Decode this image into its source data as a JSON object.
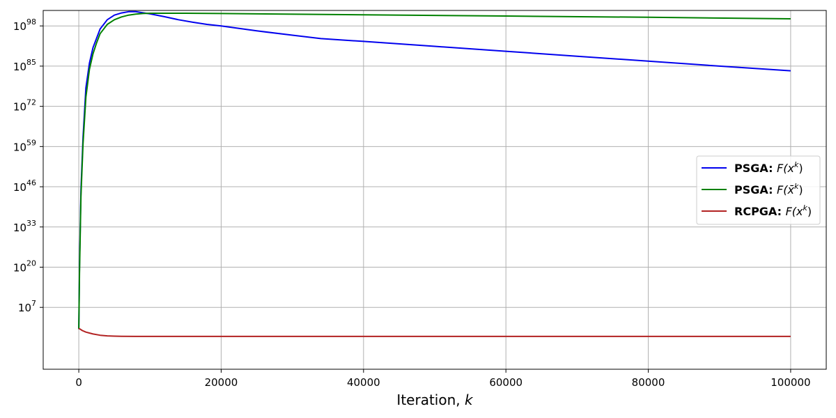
{
  "chart_data": {
    "type": "line",
    "title": "",
    "xlabel": "Iteration, ",
    "xlabel_var": "k",
    "ylabel": "",
    "xlim": [
      -5000,
      105000
    ],
    "ylim_log10": [
      -13,
      103
    ],
    "y_scale": "log",
    "grid": true,
    "legend_position": "center-right",
    "x_ticks": [
      {
        "value": 0,
        "label": "0"
      },
      {
        "value": 20000,
        "label": "20000"
      },
      {
        "value": 40000,
        "label": "40000"
      },
      {
        "value": 60000,
        "label": "60000"
      },
      {
        "value": 80000,
        "label": "80000"
      },
      {
        "value": 100000,
        "label": "100000"
      }
    ],
    "y_ticks": [
      {
        "exp": 7,
        "base": "10",
        "label": "7"
      },
      {
        "exp": 20,
        "base": "10",
        "label": "20"
      },
      {
        "exp": 33,
        "base": "10",
        "label": "33"
      },
      {
        "exp": 46,
        "base": "10",
        "label": "46"
      },
      {
        "exp": 59,
        "base": "10",
        "label": "59"
      },
      {
        "exp": 72,
        "base": "10",
        "label": "72"
      },
      {
        "exp": 85,
        "base": "10",
        "label": "85"
      },
      {
        "exp": 98,
        "base": "10",
        "label": "98"
      }
    ],
    "series": [
      {
        "name_bold": "PSGA:",
        "name_math": "F(x",
        "name_sup": "k",
        "name_tail": ")",
        "color": "#0000ee",
        "x": [
          0,
          100,
          300,
          600,
          1000,
          1500,
          2000,
          3000,
          4000,
          5000,
          6000,
          7000,
          8000,
          10000,
          12000,
          14000,
          16000,
          18000,
          20000,
          25000,
          30000,
          34000,
          40000,
          50000,
          60000,
          70000,
          80000,
          90000,
          100000
        ],
        "log10_y": [
          0,
          20,
          45,
          62,
          78,
          86,
          91,
          97,
          100,
          101.5,
          102.2,
          102.6,
          102.6,
          101.9,
          101,
          100,
          99.2,
          98.5,
          98,
          96.4,
          95,
          93.9,
          93,
          91.4,
          89.8,
          88.2,
          86.6,
          85,
          83.5
        ]
      },
      {
        "name_bold": "PSGA:",
        "name_math": "F(x̄",
        "name_sup": "k",
        "name_tail": ")",
        "color": "#008000",
        "x": [
          0,
          100,
          300,
          600,
          1000,
          1500,
          2000,
          2500,
          3000,
          4000,
          5000,
          6000,
          7000,
          8000,
          9000,
          10000,
          15000,
          20000,
          40000,
          60000,
          80000,
          100000
        ],
        "log10_y": [
          0,
          18,
          43,
          60,
          75,
          84,
          89,
          92.5,
          95.5,
          98.5,
          100,
          100.9,
          101.5,
          101.8,
          102,
          102.1,
          102.1,
          102,
          101.6,
          101.2,
          100.8,
          100.3
        ]
      },
      {
        "name_bold": "RCPGA:",
        "name_math": "F(x",
        "name_sup": "k",
        "name_tail": ")",
        "color": "#b22222",
        "x": [
          0,
          100,
          500,
          1000,
          2000,
          3000,
          4000,
          5000,
          6000,
          8000,
          20000,
          40000,
          60000,
          80000,
          100000
        ],
        "log10_y": [
          0,
          0.1,
          -0.5,
          -1,
          -1.6,
          -2,
          -2.2,
          -2.3,
          -2.35,
          -2.4,
          -2.4,
          -2.4,
          -2.4,
          -2.4,
          -2.4
        ]
      }
    ]
  }
}
